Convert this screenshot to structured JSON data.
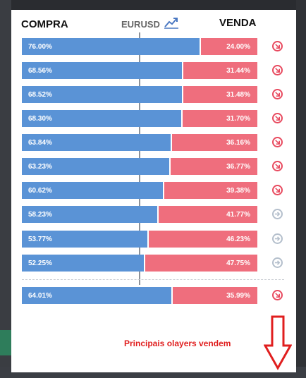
{
  "header": {
    "left_label": "COMPRA",
    "pair": "EURUSD",
    "right_label": "VENDA",
    "chart_icon": "trend-chart-icon"
  },
  "rows": [
    {
      "buy_pct": 76.0,
      "buy": "76.00%",
      "sell": "24.00%",
      "signal": "down",
      "icon": "arrow-down-right-icon"
    },
    {
      "buy_pct": 68.56,
      "buy": "68.56%",
      "sell": "31.44%",
      "signal": "down",
      "icon": "arrow-down-right-icon"
    },
    {
      "buy_pct": 68.52,
      "buy": "68.52%",
      "sell": "31.48%",
      "signal": "down",
      "icon": "arrow-down-right-icon"
    },
    {
      "buy_pct": 68.3,
      "buy": "68.30%",
      "sell": "31.70%",
      "signal": "down",
      "icon": "arrow-down-right-icon"
    },
    {
      "buy_pct": 63.84,
      "buy": "63.84%",
      "sell": "36.16%",
      "signal": "down",
      "icon": "arrow-down-right-icon"
    },
    {
      "buy_pct": 63.23,
      "buy": "63.23%",
      "sell": "36.77%",
      "signal": "down",
      "icon": "arrow-down-right-icon"
    },
    {
      "buy_pct": 60.62,
      "buy": "60.62%",
      "sell": "39.38%",
      "signal": "down",
      "icon": "arrow-down-right-icon"
    },
    {
      "buy_pct": 58.23,
      "buy": "58.23%",
      "sell": "41.77%",
      "signal": "neutral",
      "icon": "arrow-right-icon"
    },
    {
      "buy_pct": 53.77,
      "buy": "53.77%",
      "sell": "46.23%",
      "signal": "neutral",
      "icon": "arrow-right-icon"
    },
    {
      "buy_pct": 52.25,
      "buy": "52.25%",
      "sell": "47.75%",
      "signal": "neutral",
      "icon": "arrow-right-icon"
    }
  ],
  "summary": {
    "buy_pct": 64.01,
    "buy": "64.01%",
    "sell": "35.99%",
    "signal": "down",
    "icon": "arrow-down-right-icon"
  },
  "annotation": {
    "text": "Principais olayers vendem",
    "arrow_icon": "big-down-arrow-icon"
  },
  "colors": {
    "buy": "#5a93d6",
    "sell": "#ef6e7d",
    "down_signal": "#e84a5f",
    "neutral_signal": "#b4bfcc",
    "annotation": "#e01e1e"
  }
}
